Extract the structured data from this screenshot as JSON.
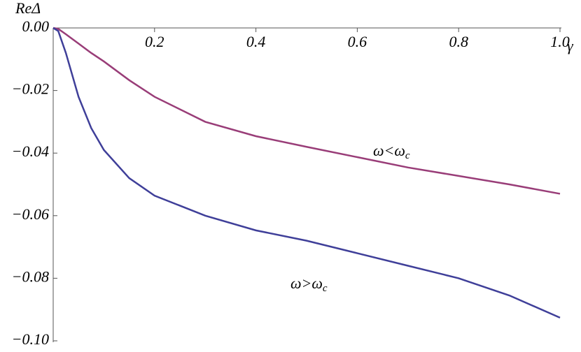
{
  "chart_data": {
    "type": "line",
    "x_label": "γ",
    "y_label": "ReΔ",
    "x": [
      0,
      0.01,
      0.025,
      0.05,
      0.075,
      0.1,
      0.15,
      0.2,
      0.3,
      0.4,
      0.5,
      0.6,
      0.7,
      0.8,
      0.9,
      1.0
    ],
    "series": [
      {
        "color": "#993d78",
        "values": [
          0,
          -0.0003,
          -0.002,
          -0.005,
          -0.008,
          -0.0107,
          -0.0167,
          -0.022,
          -0.03,
          -0.0346,
          -0.038,
          -0.0413,
          -0.0446,
          -0.0473,
          -0.05,
          -0.053
        ]
      },
      {
        "color": "#3f3f99",
        "values": [
          0,
          -0.001,
          -0.008,
          -0.022,
          -0.032,
          -0.039,
          -0.048,
          -0.0536,
          -0.06,
          -0.0647,
          -0.068,
          -0.072,
          -0.076,
          -0.08,
          -0.0855,
          -0.0926
        ]
      }
    ],
    "annotations": [
      {
        "text": "ω<ω",
        "sub": "c"
      },
      {
        "text": "ω>ω",
        "sub": "c"
      }
    ],
    "xlim": [
      0,
      1.0
    ],
    "ylim": [
      -0.1,
      0
    ],
    "xticks": [
      0.2,
      0.4,
      0.6,
      0.8,
      {
        "value": 1.0,
        "label": "1.0"
      }
    ],
    "yticks": [
      {
        "value": 0,
        "label": "0.00"
      },
      {
        "value": -0.02,
        "label": "−0.02"
      },
      {
        "value": -0.04,
        "label": "−0.04"
      },
      {
        "value": -0.06,
        "label": "−0.06"
      },
      {
        "value": -0.08,
        "label": "−0.08"
      },
      {
        "value": -0.1,
        "label": "−0.10"
      }
    ]
  }
}
